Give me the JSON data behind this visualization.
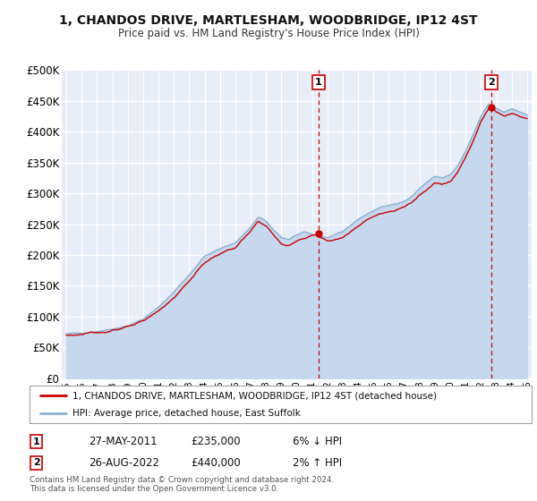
{
  "title": "1, CHANDOS DRIVE, MARTLESHAM, WOODBRIDGE, IP12 4ST",
  "subtitle": "Price paid vs. HM Land Registry's House Price Index (HPI)",
  "ylim": [
    0,
    500000
  ],
  "yticks": [
    0,
    50000,
    100000,
    150000,
    200000,
    250000,
    300000,
    350000,
    400000,
    450000,
    500000
  ],
  "ytick_labels": [
    "£0",
    "£50K",
    "£100K",
    "£150K",
    "£200K",
    "£250K",
    "£300K",
    "£350K",
    "£400K",
    "£450K",
    "£500K"
  ],
  "xlim": [
    1994.7,
    2025.3
  ],
  "xtick_years": [
    1995,
    1996,
    1997,
    1998,
    1999,
    2000,
    2001,
    2002,
    2003,
    2004,
    2005,
    2006,
    2007,
    2008,
    2009,
    2010,
    2011,
    2012,
    2013,
    2014,
    2015,
    2016,
    2017,
    2018,
    2019,
    2020,
    2021,
    2022,
    2023,
    2024,
    2025
  ],
  "plot_bg_color": "#e8eef8",
  "grid_color": "#ffffff",
  "hpi_line_color": "#8ab0d0",
  "hpi_fill_color": "#c5d8ed",
  "price_line_color": "#cc0000",
  "sale1_x": 2011.41,
  "sale1_y": 235000,
  "sale1_label": "1",
  "sale1_date": "27-MAY-2011",
  "sale1_price": "£235,000",
  "sale1_hpi": "6% ↓ HPI",
  "sale2_x": 2022.65,
  "sale2_y": 440000,
  "sale2_label": "2",
  "sale2_date": "26-AUG-2022",
  "sale2_price": "£440,000",
  "sale2_hpi": "2% ↑ HPI",
  "legend_label1": "1, CHANDOS DRIVE, MARTLESHAM, WOODBRIDGE, IP12 4ST (detached house)",
  "legend_label2": "HPI: Average price, detached house, East Suffolk",
  "footer1": "Contains HM Land Registry data © Crown copyright and database right 2024.",
  "footer2": "This data is licensed under the Open Government Licence v3.0.",
  "hpi_anchors": [
    [
      1995.0,
      72000
    ],
    [
      1996.0,
      73500
    ],
    [
      1997.0,
      76000
    ],
    [
      1998.0,
      80000
    ],
    [
      1999.0,
      85000
    ],
    [
      2000.0,
      96000
    ],
    [
      2001.0,
      115000
    ],
    [
      2002.0,
      140000
    ],
    [
      2003.0,
      168000
    ],
    [
      2004.0,
      198000
    ],
    [
      2005.0,
      210000
    ],
    [
      2006.0,
      220000
    ],
    [
      2007.0,
      245000
    ],
    [
      2007.5,
      262000
    ],
    [
      2008.0,
      255000
    ],
    [
      2008.5,
      240000
    ],
    [
      2009.0,
      228000
    ],
    [
      2009.5,
      225000
    ],
    [
      2010.0,
      232000
    ],
    [
      2010.5,
      238000
    ],
    [
      2011.0,
      234000
    ],
    [
      2011.5,
      230000
    ],
    [
      2012.0,
      228000
    ],
    [
      2012.5,
      232000
    ],
    [
      2013.0,
      238000
    ],
    [
      2013.5,
      248000
    ],
    [
      2014.0,
      258000
    ],
    [
      2014.5,
      265000
    ],
    [
      2015.0,
      272000
    ],
    [
      2015.5,
      278000
    ],
    [
      2016.0,
      280000
    ],
    [
      2016.5,
      283000
    ],
    [
      2017.0,
      288000
    ],
    [
      2017.5,
      295000
    ],
    [
      2018.0,
      308000
    ],
    [
      2018.5,
      318000
    ],
    [
      2019.0,
      328000
    ],
    [
      2019.5,
      325000
    ],
    [
      2020.0,
      330000
    ],
    [
      2020.5,
      345000
    ],
    [
      2021.0,
      368000
    ],
    [
      2021.5,
      395000
    ],
    [
      2022.0,
      425000
    ],
    [
      2022.5,
      445000
    ],
    [
      2023.0,
      438000
    ],
    [
      2023.5,
      432000
    ],
    [
      2024.0,
      438000
    ],
    [
      2024.5,
      432000
    ],
    [
      2025.0,
      428000
    ]
  ],
  "price_anchors": [
    [
      1995.0,
      70000
    ],
    [
      1996.0,
      71000
    ],
    [
      1997.0,
      74000
    ],
    [
      1998.0,
      78000
    ],
    [
      1999.0,
      83000
    ],
    [
      2000.0,
      92000
    ],
    [
      2001.0,
      110000
    ],
    [
      2002.0,
      130000
    ],
    [
      2003.0,
      158000
    ],
    [
      2004.0,
      188000
    ],
    [
      2005.0,
      202000
    ],
    [
      2006.0,
      212000
    ],
    [
      2007.0,
      238000
    ],
    [
      2007.5,
      255000
    ],
    [
      2008.0,
      248000
    ],
    [
      2008.5,
      232000
    ],
    [
      2009.0,
      218000
    ],
    [
      2009.5,
      215000
    ],
    [
      2010.0,
      222000
    ],
    [
      2010.5,
      228000
    ],
    [
      2011.0,
      232000
    ],
    [
      2011.41,
      235000
    ],
    [
      2011.5,
      230000
    ],
    [
      2012.0,
      222000
    ],
    [
      2012.5,
      225000
    ],
    [
      2013.0,
      228000
    ],
    [
      2013.5,
      238000
    ],
    [
      2014.0,
      248000
    ],
    [
      2014.5,
      256000
    ],
    [
      2015.0,
      262000
    ],
    [
      2015.5,
      268000
    ],
    [
      2016.0,
      270000
    ],
    [
      2016.5,
      272000
    ],
    [
      2017.0,
      278000
    ],
    [
      2017.5,
      285000
    ],
    [
      2018.0,
      298000
    ],
    [
      2018.5,
      308000
    ],
    [
      2019.0,
      318000
    ],
    [
      2019.5,
      315000
    ],
    [
      2020.0,
      318000
    ],
    [
      2020.5,
      335000
    ],
    [
      2021.0,
      358000
    ],
    [
      2021.5,
      385000
    ],
    [
      2022.0,
      418000
    ],
    [
      2022.5,
      438000
    ],
    [
      2022.65,
      440000
    ],
    [
      2023.0,
      432000
    ],
    [
      2023.5,
      426000
    ],
    [
      2024.0,
      430000
    ],
    [
      2024.5,
      426000
    ],
    [
      2025.0,
      422000
    ]
  ]
}
